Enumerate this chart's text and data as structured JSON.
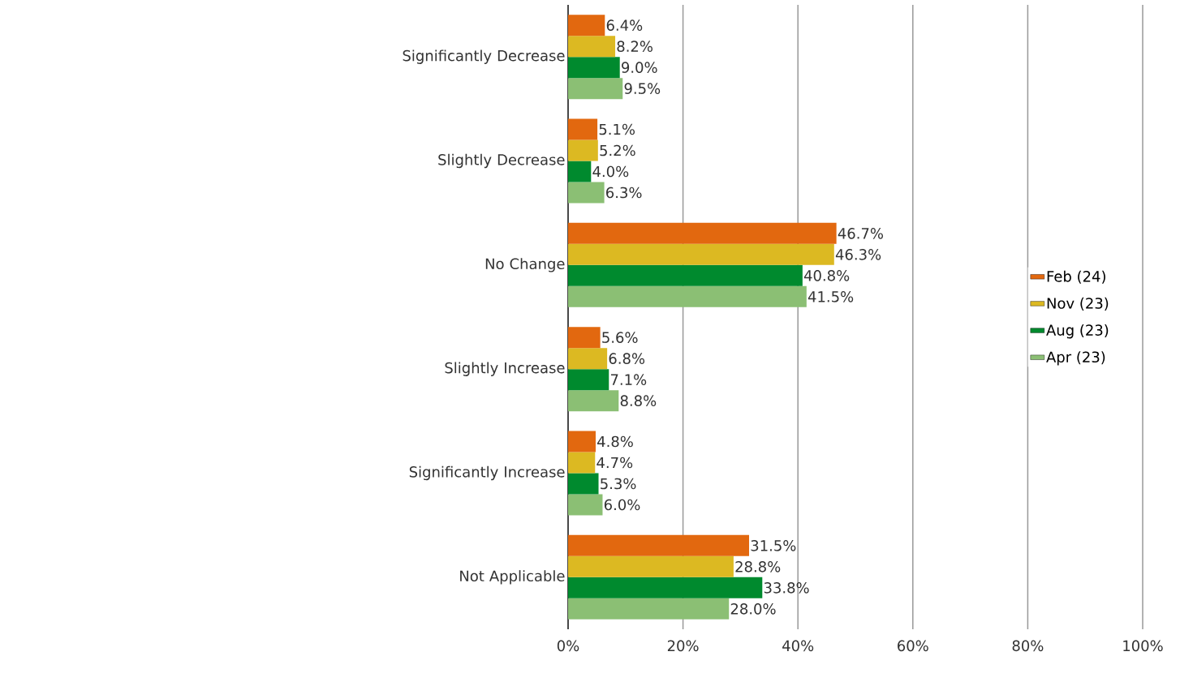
{
  "chart_data": {
    "type": "bar",
    "orientation": "horizontal",
    "categories": [
      "Significantly Decrease",
      "Slightly Decrease",
      "No Change",
      "Slightly Increase",
      "Significantly Increase",
      "Not Applicable"
    ],
    "series": [
      {
        "name": "Feb (24)",
        "color": "#e2680f",
        "values": [
          6.4,
          5.1,
          46.7,
          5.6,
          4.8,
          31.5
        ],
        "value_labels": [
          "6.4%",
          "5.1%",
          "46.7%",
          "5.6%",
          "4.8%",
          "31.5%"
        ]
      },
      {
        "name": "Nov (23)",
        "color": "#dcb922",
        "values": [
          8.2,
          5.2,
          46.3,
          6.8,
          4.7,
          28.8
        ],
        "value_labels": [
          "8.2%",
          "5.2%",
          "46.3%",
          "6.8%",
          "4.7%",
          "28.8%"
        ]
      },
      {
        "name": "Aug (23)",
        "color": "#008a2e",
        "values": [
          9.0,
          4.0,
          40.8,
          7.1,
          5.3,
          33.8
        ],
        "value_labels": [
          "9.0%",
          "4.0%",
          "40.8%",
          "7.1%",
          "5.3%",
          "33.8%"
        ]
      },
      {
        "name": "Apr (23)",
        "color": "#8bbf74",
        "values": [
          9.5,
          6.3,
          41.5,
          8.8,
          6.0,
          28.0
        ],
        "value_labels": [
          "9.5%",
          "6.3%",
          "41.5%",
          "8.8%",
          "6.0%",
          "28.0%"
        ]
      }
    ],
    "xlim": [
      0,
      100
    ],
    "xticks": [
      {
        "value": 0,
        "label": "0%"
      },
      {
        "value": 20,
        "label": "20%"
      },
      {
        "value": 40,
        "label": "40%"
      },
      {
        "value": 60,
        "label": "60%"
      },
      {
        "value": 80,
        "label": "80%"
      },
      {
        "value": 100,
        "label": "100%"
      }
    ],
    "grid": "x",
    "legend": "right"
  }
}
